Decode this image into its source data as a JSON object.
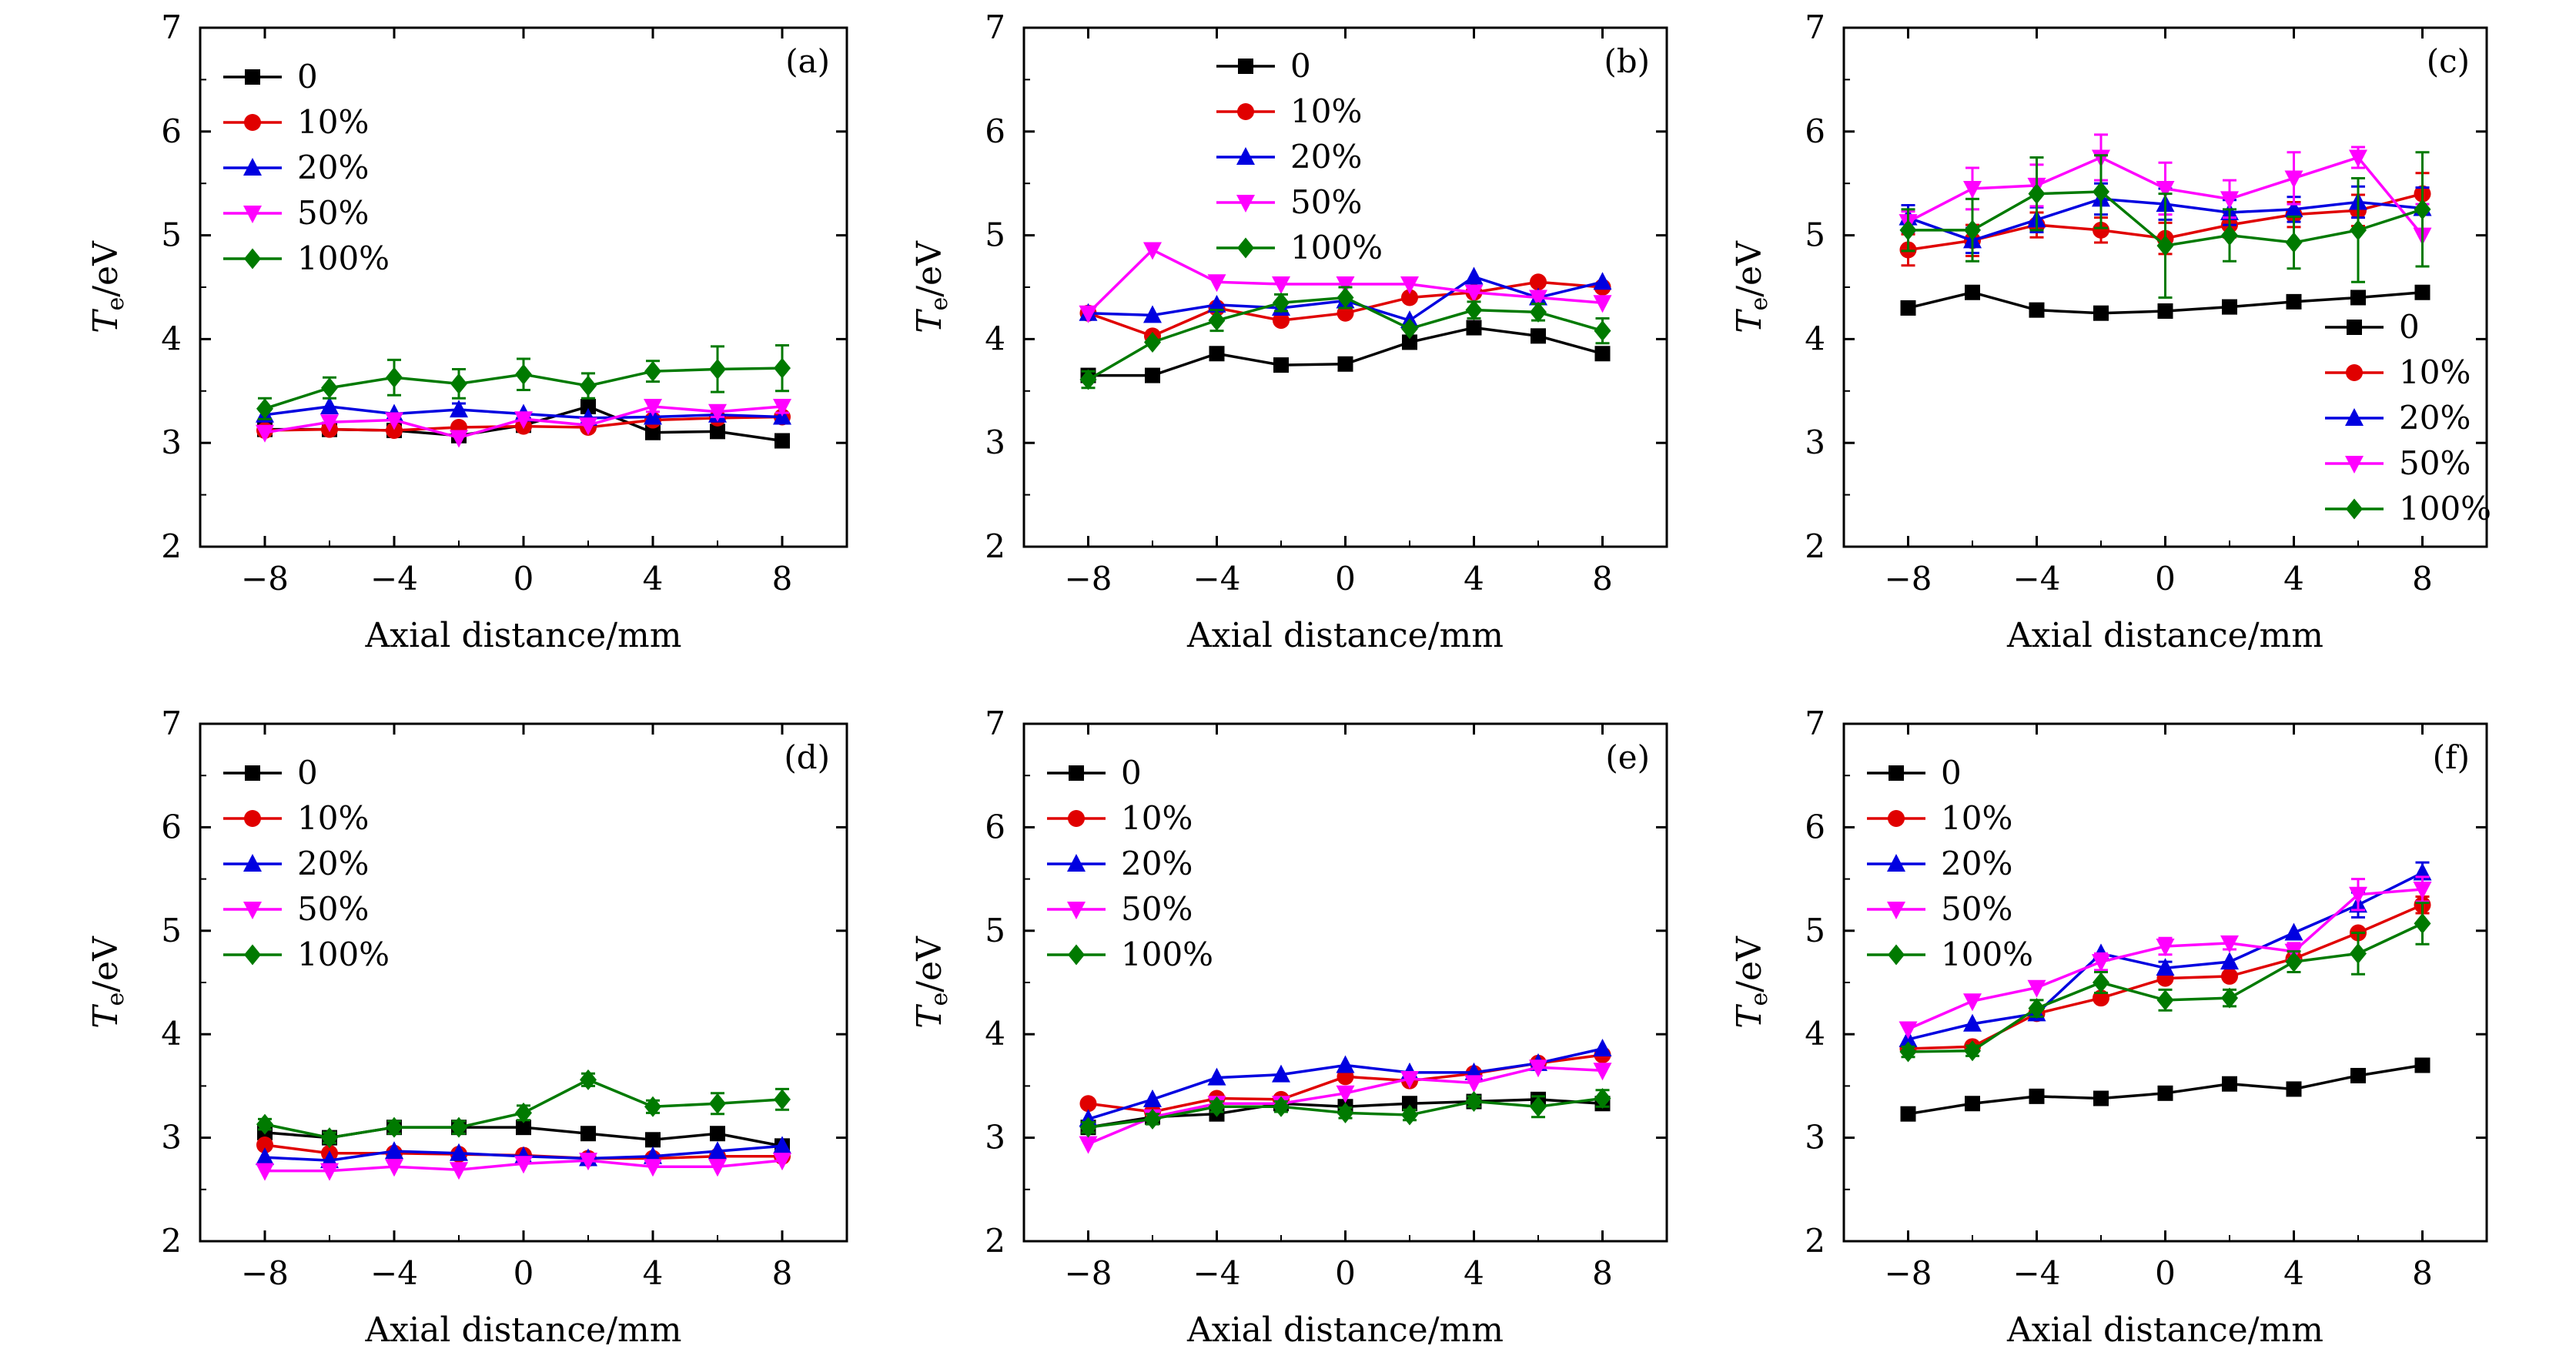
{
  "figure": {
    "y_label": "T",
    "y_label_sub": "e",
    "y_label_unit": "/eV",
    "x_label": "Axial distance/mm",
    "series_colors": {
      "0": "#000000",
      "10%": "#e00000",
      "20%": "#0000e0",
      "50%": "#ff00ff",
      "100%": "#007a00"
    },
    "markers": {
      "0": "square",
      "10%": "circle",
      "20%": "triangle-up",
      "50%": "triangle-down",
      "100%": "diamond"
    }
  },
  "chart_data": [
    {
      "type": "line",
      "panel": "(a)",
      "legend_position": "top-left",
      "xlabel": "Axial distance/mm",
      "ylabel": "Te/eV",
      "x": [
        -8,
        -6,
        -4,
        -2,
        0,
        2,
        4,
        6,
        8
      ],
      "xlim": [
        -10,
        10
      ],
      "ylim": [
        2,
        7
      ],
      "xticks": [
        "−8",
        "−4",
        "0",
        "4",
        "8"
      ],
      "yticks": [
        "2",
        "3",
        "4",
        "5",
        "6",
        "7"
      ],
      "series": [
        {
          "name": "0",
          "values": [
            3.13,
            3.13,
            3.12,
            3.07,
            3.17,
            3.35,
            3.1,
            3.11,
            3.02
          ],
          "errors": [
            0,
            0,
            0,
            0,
            0,
            0.05,
            0,
            0,
            0
          ]
        },
        {
          "name": "10%",
          "values": [
            3.12,
            3.13,
            3.12,
            3.15,
            3.16,
            3.15,
            3.22,
            3.24,
            3.25
          ],
          "errors": [
            0,
            0,
            0,
            0,
            0,
            0,
            0,
            0,
            0
          ]
        },
        {
          "name": "20%",
          "values": [
            3.27,
            3.35,
            3.28,
            3.32,
            3.28,
            3.24,
            3.25,
            3.27,
            3.25
          ],
          "errors": [
            0.05,
            0,
            0,
            0.06,
            0,
            0,
            0,
            0,
            0
          ]
        },
        {
          "name": "50%",
          "values": [
            3.1,
            3.2,
            3.22,
            3.05,
            3.23,
            3.17,
            3.35,
            3.3,
            3.35
          ],
          "errors": [
            0,
            0,
            0,
            0,
            0,
            0,
            0.05,
            0.05,
            0.06
          ]
        },
        {
          "name": "100%",
          "values": [
            3.33,
            3.53,
            3.63,
            3.57,
            3.66,
            3.55,
            3.69,
            3.71,
            3.72
          ],
          "errors": [
            0.1,
            0.1,
            0.17,
            0.14,
            0.15,
            0.12,
            0.1,
            0.22,
            0.22
          ]
        }
      ]
    },
    {
      "type": "line",
      "panel": "(b)",
      "legend_position": "top-center",
      "xlabel": "Axial distance/mm",
      "ylabel": "Te/eV",
      "x": [
        -8,
        -6,
        -4,
        -2,
        0,
        2,
        4,
        6,
        8
      ],
      "xlim": [
        -10,
        10
      ],
      "ylim": [
        2,
        7
      ],
      "xticks": [
        "−8",
        "−4",
        "0",
        "4",
        "8"
      ],
      "yticks": [
        "2",
        "3",
        "4",
        "5",
        "6",
        "7"
      ],
      "series": [
        {
          "name": "0",
          "values": [
            3.65,
            3.65,
            3.86,
            3.75,
            3.76,
            3.97,
            4.11,
            4.03,
            3.86
          ],
          "errors": [
            0,
            0,
            0,
            0,
            0,
            0,
            0,
            0,
            0
          ]
        },
        {
          "name": "10%",
          "values": [
            4.25,
            4.03,
            4.3,
            4.18,
            4.25,
            4.4,
            4.45,
            4.55,
            4.5
          ],
          "errors": [
            0,
            0,
            0,
            0,
            0,
            0,
            0,
            0,
            0
          ]
        },
        {
          "name": "20%",
          "values": [
            4.25,
            4.23,
            4.33,
            4.3,
            4.37,
            4.18,
            4.6,
            4.4,
            4.55
          ],
          "errors": [
            0,
            0,
            0,
            0,
            0,
            0,
            0,
            0,
            0
          ]
        },
        {
          "name": "50%",
          "values": [
            4.25,
            4.86,
            4.55,
            4.53,
            4.53,
            4.53,
            4.45,
            4.4,
            4.35
          ],
          "errors": [
            0,
            0,
            0,
            0,
            0,
            0,
            0,
            0,
            0
          ]
        },
        {
          "name": "100%",
          "values": [
            3.61,
            3.97,
            4.18,
            4.35,
            4.4,
            4.1,
            4.28,
            4.26,
            4.08
          ],
          "errors": [
            0.08,
            0,
            0.1,
            0.08,
            0.1,
            0,
            0.08,
            0.08,
            0.12
          ]
        }
      ]
    },
    {
      "type": "line",
      "panel": "(c)",
      "legend_position": "bottom-right",
      "xlabel": "Axial distance/mm",
      "ylabel": "Te/eV",
      "x": [
        -8,
        -6,
        -4,
        -2,
        0,
        2,
        4,
        6,
        8
      ],
      "xlim": [
        -10,
        10
      ],
      "ylim": [
        2,
        7
      ],
      "xticks": [
        "−8",
        "−4",
        "0",
        "4",
        "8"
      ],
      "yticks": [
        "2",
        "3",
        "4",
        "5",
        "6",
        "7"
      ],
      "series": [
        {
          "name": "0",
          "values": [
            4.3,
            4.45,
            4.28,
            4.25,
            4.27,
            4.31,
            4.36,
            4.4,
            4.45
          ],
          "errors": [
            0,
            0,
            0,
            0,
            0,
            0,
            0,
            0,
            0
          ]
        },
        {
          "name": "10%",
          "values": [
            4.86,
            4.95,
            5.1,
            5.05,
            4.97,
            5.1,
            5.2,
            5.24,
            5.4
          ],
          "errors": [
            0.15,
            0.15,
            0.12,
            0.12,
            0.15,
            0.12,
            0.12,
            0.15,
            0.2
          ]
        },
        {
          "name": "20%",
          "values": [
            5.17,
            4.95,
            5.15,
            5.35,
            5.3,
            5.22,
            5.25,
            5.32,
            5.26
          ],
          "errors": [
            0.12,
            0.12,
            0.12,
            0.15,
            0.15,
            0.12,
            0.12,
            0.15,
            0.2
          ]
        },
        {
          "name": "50%",
          "values": [
            5.13,
            5.45,
            5.48,
            5.75,
            5.45,
            5.35,
            5.55,
            5.75,
            5.0
          ],
          "errors": [
            0.1,
            0.2,
            0.2,
            0.22,
            0.25,
            0.18,
            0.25,
            0.1,
            0.3
          ]
        },
        {
          "name": "100%",
          "values": [
            5.05,
            5.05,
            5.4,
            5.42,
            4.9,
            5.0,
            4.93,
            5.05,
            5.25
          ],
          "errors": [
            0.2,
            0.3,
            0.35,
            0.35,
            0.5,
            0.25,
            0.25,
            0.5,
            0.55
          ]
        }
      ]
    },
    {
      "type": "line",
      "panel": "(d)",
      "legend_position": "top-left",
      "xlabel": "Axial distance/mm",
      "ylabel": "Te/eV",
      "x": [
        -8,
        -6,
        -4,
        -2,
        0,
        2,
        4,
        6,
        8
      ],
      "xlim": [
        -10,
        10
      ],
      "ylim": [
        2,
        7
      ],
      "xticks": [
        "−8",
        "−4",
        "0",
        "4",
        "8"
      ],
      "yticks": [
        "2",
        "3",
        "4",
        "5",
        "6",
        "7"
      ],
      "series": [
        {
          "name": "0",
          "values": [
            3.05,
            3.0,
            3.1,
            3.1,
            3.1,
            3.04,
            2.98,
            3.04,
            2.92
          ],
          "errors": [
            0,
            0,
            0,
            0,
            0,
            0,
            0,
            0,
            0
          ]
        },
        {
          "name": "10%",
          "values": [
            2.93,
            2.85,
            2.85,
            2.84,
            2.83,
            2.8,
            2.8,
            2.82,
            2.82
          ],
          "errors": [
            0,
            0,
            0,
            0,
            0,
            0,
            0,
            0,
            0
          ]
        },
        {
          "name": "20%",
          "values": [
            2.81,
            2.78,
            2.87,
            2.85,
            2.82,
            2.8,
            2.82,
            2.87,
            2.92
          ],
          "errors": [
            0,
            0,
            0,
            0,
            0,
            0,
            0,
            0,
            0
          ]
        },
        {
          "name": "50%",
          "values": [
            2.68,
            2.68,
            2.72,
            2.69,
            2.75,
            2.78,
            2.72,
            2.72,
            2.78
          ],
          "errors": [
            0,
            0,
            0,
            0,
            0,
            0,
            0,
            0,
            0
          ]
        },
        {
          "name": "100%",
          "values": [
            3.13,
            3.0,
            3.1,
            3.1,
            3.24,
            3.56,
            3.3,
            3.33,
            3.37
          ],
          "errors": [
            0.05,
            0.05,
            0.06,
            0.06,
            0.07,
            0.06,
            0.06,
            0.1,
            0.1
          ]
        }
      ]
    },
    {
      "type": "line",
      "panel": "(e)",
      "legend_position": "top-left",
      "xlabel": "Axial distance/mm",
      "ylabel": "Te/eV",
      "x": [
        -8,
        -6,
        -4,
        -2,
        0,
        2,
        4,
        6,
        8
      ],
      "xlim": [
        -10,
        10
      ],
      "ylim": [
        2,
        7
      ],
      "xticks": [
        "−8",
        "−4",
        "0",
        "4",
        "8"
      ],
      "yticks": [
        "2",
        "3",
        "4",
        "5",
        "6",
        "7"
      ],
      "series": [
        {
          "name": "0",
          "values": [
            3.1,
            3.2,
            3.23,
            3.33,
            3.3,
            3.33,
            3.35,
            3.37,
            3.33
          ],
          "errors": [
            0,
            0,
            0,
            0,
            0,
            0,
            0,
            0,
            0
          ]
        },
        {
          "name": "10%",
          "values": [
            3.33,
            3.25,
            3.38,
            3.37,
            3.59,
            3.55,
            3.62,
            3.72,
            3.8
          ],
          "errors": [
            0,
            0,
            0,
            0,
            0,
            0,
            0,
            0,
            0
          ]
        },
        {
          "name": "20%",
          "values": [
            3.18,
            3.37,
            3.58,
            3.61,
            3.7,
            3.63,
            3.63,
            3.72,
            3.86
          ],
          "errors": [
            0,
            0,
            0,
            0,
            0,
            0,
            0,
            0,
            0
          ]
        },
        {
          "name": "50%",
          "values": [
            2.94,
            3.2,
            3.33,
            3.33,
            3.43,
            3.57,
            3.53,
            3.68,
            3.65
          ],
          "errors": [
            0,
            0,
            0,
            0,
            0,
            0,
            0,
            0,
            0
          ]
        },
        {
          "name": "100%",
          "values": [
            3.1,
            3.18,
            3.3,
            3.3,
            3.24,
            3.22,
            3.35,
            3.3,
            3.38
          ],
          "errors": [
            0.05,
            0.05,
            0.05,
            0.05,
            0.05,
            0.05,
            0.05,
            0.1,
            0.08
          ]
        }
      ]
    },
    {
      "type": "line",
      "panel": "(f)",
      "legend_position": "top-left",
      "xlabel": "Axial distance/mm",
      "ylabel": "Te/eV",
      "x": [
        -8,
        -6,
        -4,
        -2,
        0,
        2,
        4,
        6,
        8
      ],
      "xlim": [
        -10,
        10
      ],
      "ylim": [
        2,
        7
      ],
      "xticks": [
        "−8",
        "−4",
        "0",
        "4",
        "8"
      ],
      "yticks": [
        "2",
        "3",
        "4",
        "5",
        "6",
        "7"
      ],
      "series": [
        {
          "name": "0",
          "values": [
            3.23,
            3.33,
            3.4,
            3.38,
            3.43,
            3.52,
            3.47,
            3.6,
            3.7
          ],
          "errors": [
            0,
            0,
            0,
            0,
            0,
            0,
            0,
            0,
            0
          ]
        },
        {
          "name": "10%",
          "values": [
            3.86,
            3.88,
            4.2,
            4.35,
            4.54,
            4.56,
            4.73,
            4.98,
            5.25
          ],
          "errors": [
            0,
            0,
            0,
            0,
            0,
            0,
            0,
            0,
            0.08
          ]
        },
        {
          "name": "20%",
          "values": [
            3.95,
            4.1,
            4.2,
            4.78,
            4.64,
            4.7,
            4.98,
            5.25,
            5.56
          ],
          "errors": [
            0,
            0,
            0,
            0,
            0.06,
            0,
            0,
            0.12,
            0.1
          ]
        },
        {
          "name": "50%",
          "values": [
            4.05,
            4.32,
            4.45,
            4.7,
            4.85,
            4.88,
            4.8,
            5.35,
            5.4
          ],
          "errors": [
            0,
            0,
            0,
            0.08,
            0.08,
            0.06,
            0.08,
            0.15,
            0.12
          ]
        },
        {
          "name": "100%",
          "values": [
            3.83,
            3.84,
            4.25,
            4.5,
            4.33,
            4.35,
            4.7,
            4.78,
            5.07
          ],
          "errors": [
            0.05,
            0.05,
            0.08,
            0.1,
            0.1,
            0.08,
            0.1,
            0.2,
            0.2
          ]
        }
      ]
    }
  ]
}
